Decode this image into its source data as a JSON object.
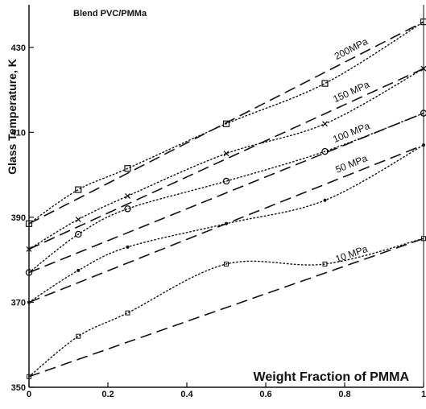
{
  "chart_data": {
    "type": "line",
    "title": "Blend PVC/PMMa",
    "xlabel": "Weight Fraction of PMMA",
    "ylabel": "Glass Temperature, K",
    "xlim": [
      0,
      1
    ],
    "ylim": [
      350,
      440
    ],
    "x_ticks": [
      0,
      0.2,
      0.4,
      0.6,
      0.8,
      1
    ],
    "x_tick_labels": [
      "0",
      "0.2",
      "0.4",
      "0.6",
      "0.8",
      "1"
    ],
    "y_ticks": [
      350,
      370,
      390,
      410,
      430
    ],
    "y_tick_labels": [
      "350",
      "370",
      "390",
      "410",
      "430"
    ],
    "grid": false,
    "series": [
      {
        "name": "200MPa",
        "marker": "square",
        "x": [
          0,
          0.125,
          0.25,
          0.5,
          0.75,
          1
        ],
        "y": [
          388.5,
          396.5,
          401.5,
          412,
          421.5,
          436
        ],
        "linear_fit": [
          388.5,
          436
        ]
      },
      {
        "name": "150 MPa",
        "marker": "x",
        "x": [
          0,
          0.125,
          0.25,
          0.5,
          0.75,
          1
        ],
        "y": [
          382.5,
          389.5,
          395,
          405,
          412,
          425
        ],
        "linear_fit": [
          382.5,
          425
        ]
      },
      {
        "name": "100 MPa",
        "marker": "circle",
        "x": [
          0,
          0.125,
          0.25,
          0.5,
          0.75,
          1
        ],
        "y": [
          377,
          386,
          392,
          398.5,
          405.5,
          414.5
        ],
        "linear_fit": [
          377,
          414.5
        ]
      },
      {
        "name": "50 MPa",
        "marker": "dot",
        "x": [
          0,
          0.125,
          0.25,
          0.5,
          0.75,
          1
        ],
        "y": [
          370,
          377.5,
          383,
          388.5,
          394,
          407
        ],
        "linear_fit": [
          370,
          407
        ]
      },
      {
        "name": "10 MPa",
        "marker": "small-square",
        "x": [
          0,
          0.125,
          0.25,
          0.5,
          0.75,
          1
        ],
        "y": [
          352.5,
          362,
          367.5,
          379,
          379,
          385
        ],
        "linear_fit": [
          352.5,
          385
        ]
      }
    ]
  }
}
